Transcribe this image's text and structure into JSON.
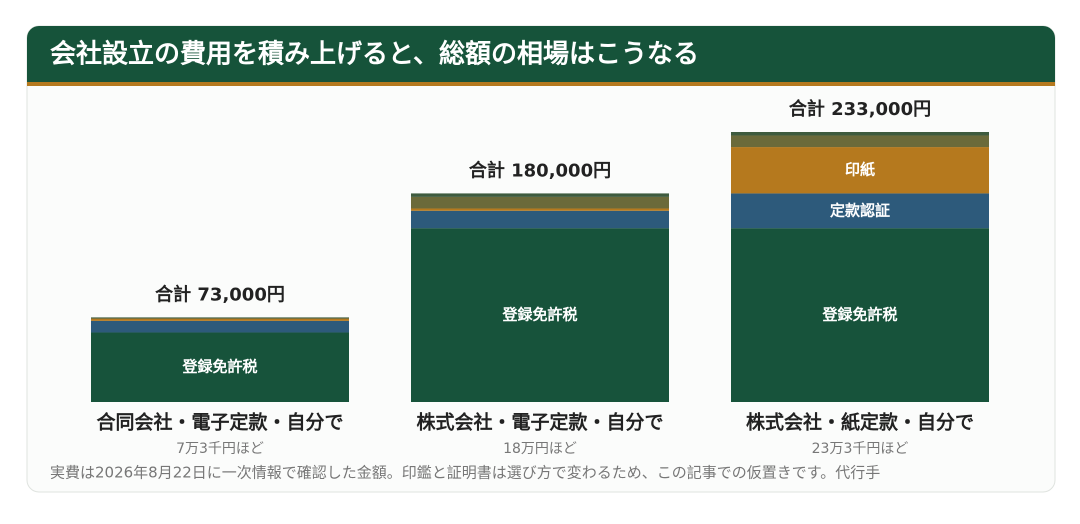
{
  "chart_data": {
    "type": "bar",
    "stacked": true,
    "title": "会社設立の費用を積み上げると、総額の相場はこうなる",
    "categories": [
      "合同会社・電子定款・自分で",
      "株式会社・電子定款・自分で",
      "株式会社・紙定款・自分で"
    ],
    "category_notes": [
      "7万3千円ほど",
      "18万円ほど",
      "23万3千円ほど"
    ],
    "totals": [
      73000,
      180000,
      233000
    ],
    "total_labels": [
      "合計 73,000円",
      "合計 180,000円",
      "合計 233,000円"
    ],
    "series": [
      {
        "name": "登録免許税",
        "color": "#17533b",
        "values": [
          60000,
          150000,
          150000
        ]
      },
      {
        "name": "定款認証",
        "color": "#2d5a7b",
        "values": [
          10000,
          15000,
          30000
        ]
      },
      {
        "name": "印紙",
        "color": "#b5791e",
        "values": [
          2000,
          2000,
          40000
        ]
      },
      {
        "color": "#6b6a3a",
        "values": [
          0,
          10000,
          10000
        ]
      },
      {
        "color": "#3e5b3e",
        "values": [
          1000,
          3000,
          3000
        ]
      }
    ],
    "footnote": "実費は2026年8月22日に一次情報で確認した金額。印鑑と証明書は選び方で変わるため、この記事での仮置きです。代行手"
  }
}
